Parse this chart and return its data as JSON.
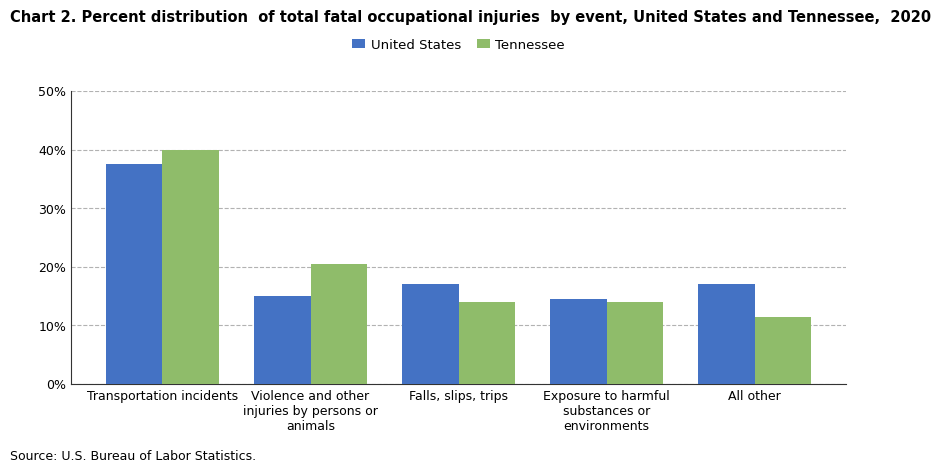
{
  "title": "Chart 2. Percent distribution  of total fatal occupational injuries  by event, United States and Tennessee,  2020",
  "categories": [
    "Transportation incidents",
    "Violence and other\ninjuries by persons or\nanimals",
    "Falls, slips, trips",
    "Exposure to harmful\nsubstances or\nenvironments",
    "All other"
  ],
  "us_values": [
    37.5,
    15.0,
    17.0,
    14.5,
    17.0
  ],
  "tn_values": [
    40.0,
    20.5,
    14.0,
    14.0,
    11.5
  ],
  "us_color": "#4472C4",
  "tn_color": "#8FBC6A",
  "us_label": "United States",
  "tn_label": "Tennessee",
  "ylim": [
    0,
    50
  ],
  "yticks": [
    0,
    10,
    20,
    30,
    40,
    50
  ],
  "source": "Source: U.S. Bureau of Labor Statistics.",
  "background_color": "#ffffff",
  "grid_color": "#aaaaaa",
  "title_fontsize": 10.5,
  "axis_fontsize": 9,
  "legend_fontsize": 9.5,
  "source_fontsize": 9
}
